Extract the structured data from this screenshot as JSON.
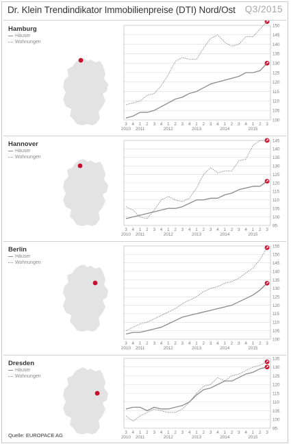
{
  "header": {
    "title": "Dr. Klein Trendindikator Immobilienpreise (DTI) Nord/Ost",
    "period": "Q3/2015"
  },
  "legend": {
    "houses": "Häuser",
    "apartments": "Wohnungen"
  },
  "source": "Quelle: EUROPACE AG",
  "colors": {
    "houses_line": "#8a8a8a",
    "apartments_line": "#8f8f8f",
    "marker": "#c8102e",
    "map": "#e3e3e3",
    "grid": "#d9d9d9"
  },
  "chart_data": [
    {
      "type": "line",
      "city": "Hamburg",
      "x_quarters": [
        "3",
        "4",
        "1",
        "2",
        "3",
        "4",
        "1",
        "2",
        "3",
        "4",
        "1",
        "2",
        "3",
        "4",
        "1",
        "2",
        "3",
        "4",
        "1",
        "2",
        "3"
      ],
      "x_years": [
        "2010",
        "2011",
        "2012",
        "2013",
        "2014",
        "2015"
      ],
      "ylim": [
        100,
        150
      ],
      "yticks": [
        100,
        105,
        110,
        115,
        120,
        125,
        130,
        135,
        140,
        145,
        150
      ],
      "series": [
        {
          "name": "Häuser",
          "style": "solid",
          "values": [
            101,
            102,
            104,
            104,
            105,
            107,
            109,
            111,
            112,
            114,
            115,
            117,
            119,
            120,
            121,
            122,
            123,
            125,
            125,
            126,
            130
          ]
        },
        {
          "name": "Wohnungen",
          "style": "dotted",
          "values": [
            108,
            109,
            110,
            113,
            114,
            118,
            124,
            131,
            133,
            132,
            132,
            138,
            143,
            145,
            141,
            139,
            140,
            144,
            144,
            148,
            152
          ]
        }
      ]
    },
    {
      "type": "line",
      "city": "Hannover",
      "x_quarters": [
        "3",
        "4",
        "1",
        "2",
        "3",
        "4",
        "1",
        "2",
        "3",
        "4",
        "1",
        "2",
        "3",
        "4",
        "1",
        "2",
        "3",
        "4",
        "1",
        "2",
        "3"
      ],
      "x_years": [
        "2010",
        "2011",
        "2012",
        "2013",
        "2014",
        "2015"
      ],
      "ylim": [
        95,
        145
      ],
      "yticks": [
        95,
        100,
        105,
        110,
        115,
        120,
        125,
        130,
        135,
        140,
        145
      ],
      "series": [
        {
          "name": "Häuser",
          "style": "solid",
          "values": [
            99,
            100,
            101,
            102,
            103,
            104,
            105,
            105,
            106,
            108,
            110,
            110,
            111,
            111,
            113,
            114,
            116,
            117,
            118,
            118,
            121
          ]
        },
        {
          "name": "Wohnungen",
          "style": "dotted",
          "values": [
            106,
            104,
            100,
            99,
            104,
            110,
            112,
            110,
            109,
            111,
            117,
            125,
            129,
            126,
            127,
            127,
            133,
            134,
            142,
            145,
            145
          ]
        }
      ]
    },
    {
      "type": "line",
      "city": "Berlin",
      "x_quarters": [
        "3",
        "4",
        "1",
        "2",
        "3",
        "4",
        "1",
        "2",
        "3",
        "4",
        "1",
        "2",
        "3",
        "4",
        "1",
        "2",
        "3",
        "4",
        "1",
        "2",
        "3"
      ],
      "x_years": [
        "2010",
        "2011",
        "2012",
        "2013",
        "2014",
        "2015"
      ],
      "ylim": [
        100,
        155
      ],
      "yticks": [
        100,
        105,
        110,
        115,
        120,
        125,
        130,
        135,
        140,
        145,
        150,
        155
      ],
      "series": [
        {
          "name": "Häuser",
          "style": "solid",
          "values": [
            103,
            104,
            104,
            105,
            106,
            107,
            109,
            111,
            113,
            114,
            115,
            116,
            117,
            118,
            119,
            120,
            122,
            124,
            126,
            129,
            133
          ]
        },
        {
          "name": "Wohnungen",
          "style": "dotted",
          "values": [
            105,
            107,
            109,
            110,
            112,
            114,
            116,
            118,
            121,
            123,
            125,
            128,
            130,
            131,
            133,
            134,
            136,
            139,
            142,
            147,
            154
          ]
        }
      ]
    },
    {
      "type": "line",
      "city": "Dresden",
      "x_quarters": [
        "3",
        "4",
        "1",
        "2",
        "3",
        "4",
        "1",
        "2",
        "3",
        "4",
        "1",
        "2",
        "3",
        "4",
        "1",
        "2",
        "3",
        "4",
        "1",
        "2",
        "3"
      ],
      "x_years": [
        "2010",
        "2011",
        "2012",
        "2013",
        "2014",
        "2015"
      ],
      "ylim": [
        95,
        135
      ],
      "yticks": [
        95,
        100,
        105,
        110,
        115,
        120,
        125,
        130,
        135
      ],
      "series": [
        {
          "name": "Häuser",
          "style": "solid",
          "values": [
            106,
            107,
            107,
            105,
            107,
            106,
            106,
            107,
            108,
            110,
            114,
            117,
            118,
            120,
            122,
            122,
            124,
            126,
            127,
            129,
            130
          ]
        },
        {
          "name": "Wohnungen",
          "style": "dotted",
          "values": [
            102,
            99,
            102,
            104,
            106,
            105,
            104,
            104,
            106,
            110,
            115,
            119,
            120,
            124,
            122,
            125,
            126,
            128,
            130,
            131,
            133
          ]
        }
      ]
    }
  ]
}
